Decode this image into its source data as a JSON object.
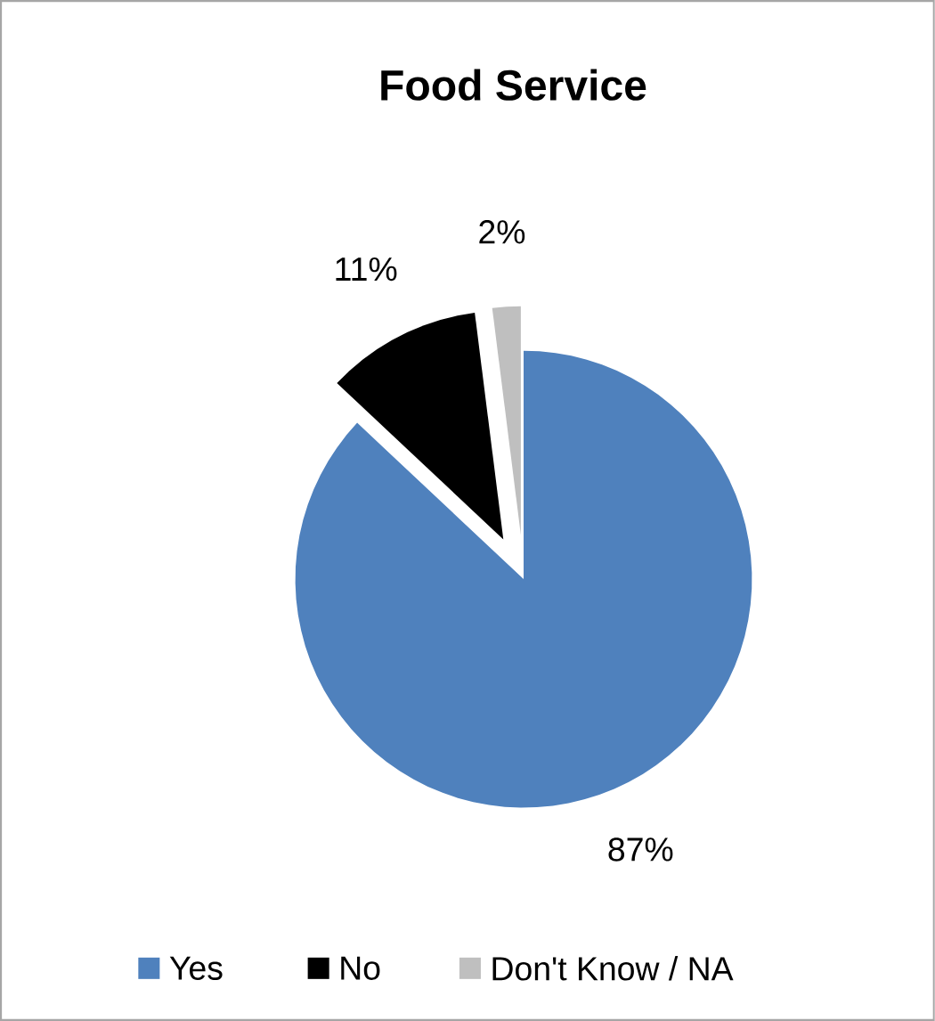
{
  "chart_data": {
    "type": "pie",
    "title": "Food Service",
    "categories": [
      "Yes",
      "No",
      "Don't Know / NA"
    ],
    "values": [
      87,
      11,
      2
    ],
    "colors": [
      "#4f81bd",
      "#000000",
      "#bfbfbf"
    ],
    "value_labels": [
      "87%",
      "11%",
      "2%"
    ],
    "legend": "bottom"
  }
}
